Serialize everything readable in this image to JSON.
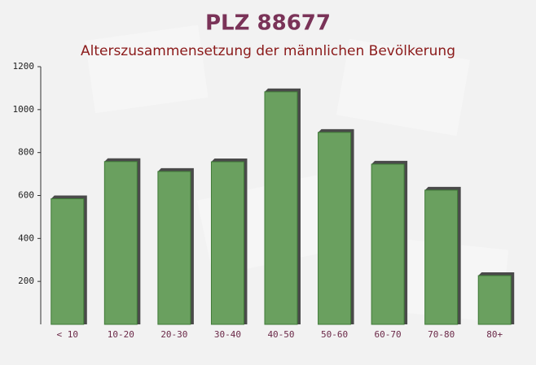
{
  "chart_data": {
    "type": "bar",
    "title": "PLZ 88677",
    "subtitle": "Alterszusammensetzung der männlichen Bevölkerung",
    "categories": [
      "< 10",
      "10-20",
      "20-30",
      "30-40",
      "40-50",
      "50-60",
      "60-70",
      "70-80",
      "80+"
    ],
    "values": [
      585,
      758,
      712,
      757,
      1083,
      894,
      746,
      625,
      227
    ],
    "color": "#6aa05f",
    "ylim": [
      0,
      1200
    ],
    "yticks": [
      200,
      400,
      600,
      800,
      1000,
      1200
    ],
    "grid": false
  }
}
